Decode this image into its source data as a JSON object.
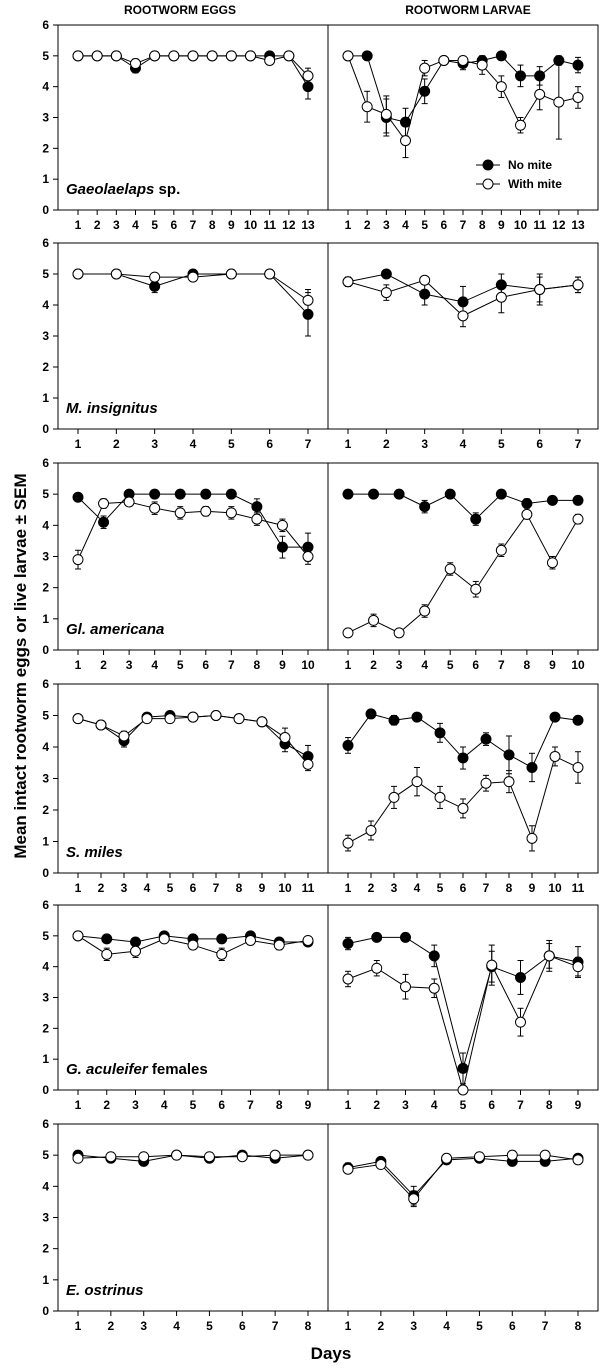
{
  "figure": {
    "col_titles": [
      "ROOTWORM EGGS",
      "ROOTWORM LARVAE"
    ],
    "ylabel": "Mean intact rootworm eggs or live larvae ± SEM",
    "xlabel": "Days",
    "legend": {
      "series1": "No mite",
      "series2": "With mite"
    },
    "colors": {
      "no_mite": "#000000",
      "with_mite": "#ffffff",
      "line": "#000000"
    }
  },
  "panels": [
    {
      "species_italic": "Gaeolaelaps",
      "species_plain": " sp.",
      "days": [
        1,
        2,
        3,
        4,
        5,
        6,
        7,
        8,
        9,
        10,
        11,
        12,
        13
      ]
    },
    {
      "species_italic": "M. insignitus",
      "species_plain": "",
      "days": [
        1,
        2,
        3,
        4,
        5,
        6,
        7
      ]
    },
    {
      "species_italic": "Gl. americana",
      "species_plain": "",
      "days": [
        1,
        2,
        3,
        4,
        5,
        6,
        7,
        8,
        9,
        10
      ]
    },
    {
      "species_italic": "S. miles",
      "species_plain": "",
      "days": [
        1,
        2,
        3,
        4,
        5,
        6,
        7,
        8,
        9,
        10,
        11
      ]
    },
    {
      "species_italic": "G. aculeifer",
      "species_plain": " females",
      "days": [
        1,
        2,
        3,
        4,
        5,
        6,
        7,
        8,
        9
      ]
    },
    {
      "species_italic": "E. ostrinus",
      "species_plain": "",
      "days": [
        1,
        2,
        3,
        4,
        5,
        6,
        7,
        8
      ]
    }
  ],
  "chart_data": [
    {
      "type": "line",
      "title": "ROOTWORM EGGS",
      "xlabel": "",
      "ylabel": "",
      "ylim": [
        0,
        6
      ],
      "x": [
        1,
        2,
        3,
        4,
        5,
        6,
        7,
        8,
        9,
        10,
        11,
        12,
        13
      ],
      "series": [
        {
          "name": "No mite",
          "values": [
            5,
            5,
            5,
            4.6,
            5,
            5,
            5,
            5,
            5,
            5,
            5,
            5,
            4.0
          ],
          "sem": [
            0,
            0,
            0,
            0.15,
            0,
            0,
            0,
            0,
            0,
            0,
            0.1,
            0,
            0.4
          ]
        },
        {
          "name": "With mite",
          "values": [
            5,
            5,
            5,
            4.75,
            5,
            5,
            5,
            5,
            5,
            5,
            4.85,
            5,
            4.35
          ],
          "sem": [
            0,
            0,
            0,
            0.15,
            0,
            0,
            0,
            0,
            0,
            0,
            0.1,
            0,
            0.25
          ]
        }
      ]
    },
    {
      "type": "line",
      "title": "ROOTWORM LARVAE",
      "xlabel": "",
      "ylabel": "",
      "ylim": [
        0,
        6
      ],
      "x": [
        1,
        2,
        3,
        4,
        5,
        6,
        7,
        8,
        9,
        10,
        11,
        12,
        13
      ],
      "series": [
        {
          "name": "No mite",
          "values": [
            5,
            5,
            3.0,
            2.85,
            3.85,
            4.85,
            4.75,
            4.85,
            5,
            4.35,
            4.35,
            4.85,
            4.7
          ],
          "sem": [
            0,
            0,
            0.6,
            0.45,
            0.4,
            0.1,
            0.2,
            0.15,
            0,
            0.35,
            0.3,
            0.15,
            0.25
          ]
        },
        {
          "name": "With mite",
          "values": [
            5,
            3.35,
            3.1,
            2.25,
            4.6,
            4.85,
            4.85,
            4.7,
            4.0,
            2.75,
            3.75,
            3.5,
            3.65
          ],
          "sem": [
            0,
            0.5,
            0.6,
            0.55,
            0.25,
            0.1,
            0.1,
            0.3,
            0.35,
            0.25,
            0.5,
            1.2,
            0.35
          ]
        }
      ]
    },
    {
      "type": "line",
      "title": "",
      "xlabel": "",
      "ylabel": "",
      "ylim": [
        0,
        6
      ],
      "x": [
        1,
        2,
        3,
        4,
        5,
        6,
        7
      ],
      "series": [
        {
          "name": "No mite",
          "values": [
            5,
            5,
            4.6,
            5,
            5,
            5,
            3.7
          ],
          "sem": [
            0,
            0,
            0.2,
            0,
            0,
            0,
            0.7
          ]
        },
        {
          "name": "With mite",
          "values": [
            5,
            5,
            4.9,
            4.9,
            5,
            5,
            4.15
          ],
          "sem": [
            0,
            0,
            0.1,
            0.1,
            0,
            0,
            0.35
          ]
        }
      ]
    },
    {
      "type": "line",
      "title": "",
      "xlabel": "",
      "ylabel": "",
      "ylim": [
        0,
        6
      ],
      "x": [
        1,
        2,
        3,
        4,
        5,
        6,
        7
      ],
      "series": [
        {
          "name": "No mite",
          "values": [
            4.75,
            5.0,
            4.35,
            4.1,
            4.65,
            4.5,
            4.65
          ],
          "sem": [
            0.15,
            0,
            0.35,
            0.5,
            0.35,
            0.5,
            0.25
          ]
        },
        {
          "name": "With mite",
          "values": [
            4.75,
            4.4,
            4.8,
            3.65,
            4.25,
            4.5,
            4.65
          ],
          "sem": [
            0.15,
            0.25,
            0.1,
            0.35,
            0.5,
            0.4,
            0.25
          ]
        }
      ]
    },
    {
      "type": "line",
      "title": "",
      "xlabel": "",
      "ylabel": "",
      "ylim": [
        0,
        6
      ],
      "x": [
        1,
        2,
        3,
        4,
        5,
        6,
        7,
        8,
        9,
        10
      ],
      "series": [
        {
          "name": "No mite",
          "values": [
            4.9,
            4.1,
            5,
            5,
            5,
            5,
            5,
            4.6,
            3.3,
            3.3
          ],
          "sem": [
            0,
            0.2,
            0,
            0,
            0,
            0,
            0,
            0.25,
            0.35,
            0.45
          ]
        },
        {
          "name": "With mite",
          "values": [
            2.9,
            4.7,
            4.75,
            4.55,
            4.4,
            4.45,
            4.4,
            4.2,
            4.0,
            3.0
          ],
          "sem": [
            0.3,
            0.15,
            0.1,
            0.2,
            0.2,
            0.15,
            0.2,
            0.2,
            0.2,
            0.25
          ]
        }
      ]
    },
    {
      "type": "line",
      "title": "",
      "xlabel": "",
      "ylabel": "",
      "ylim": [
        0,
        6
      ],
      "x": [
        1,
        2,
        3,
        4,
        5,
        6,
        7,
        8,
        9,
        10
      ],
      "series": [
        {
          "name": "No mite",
          "values": [
            5,
            5,
            5,
            4.6,
            5,
            4.2,
            5,
            4.7,
            4.8,
            4.8
          ],
          "sem": [
            0,
            0,
            0,
            0.2,
            0,
            0.2,
            0,
            0.15,
            0.1,
            0.1
          ]
        },
        {
          "name": "With mite",
          "values": [
            0.55,
            0.95,
            0.55,
            1.25,
            2.6,
            1.95,
            3.2,
            4.35,
            2.8,
            4.2
          ],
          "sem": [
            0,
            0.2,
            0,
            0.2,
            0.2,
            0.25,
            0.2,
            0,
            0.2,
            0.15
          ]
        }
      ]
    },
    {
      "type": "line",
      "title": "",
      "xlabel": "",
      "ylabel": "",
      "ylim": [
        0,
        6
      ],
      "x": [
        1,
        2,
        3,
        4,
        5,
        6,
        7,
        8,
        9,
        10,
        11
      ],
      "series": [
        {
          "name": "No mite",
          "values": [
            4.9,
            4.7,
            4.2,
            4.95,
            5,
            4.95,
            5,
            4.9,
            4.8,
            4.1,
            3.7
          ],
          "sem": [
            0,
            0.1,
            0.2,
            0.1,
            0,
            0.1,
            0,
            0,
            0.1,
            0.25,
            0.35
          ]
        },
        {
          "name": "With mite",
          "values": [
            4.9,
            4.7,
            4.35,
            4.9,
            4.9,
            4.95,
            5,
            4.9,
            4.8,
            4.3,
            3.45
          ],
          "sem": [
            0,
            0.1,
            0.15,
            0.1,
            0.1,
            0.1,
            0,
            0,
            0.1,
            0.3,
            0.2
          ]
        }
      ]
    },
    {
      "type": "line",
      "title": "",
      "xlabel": "",
      "ylabel": "",
      "ylim": [
        0,
        6
      ],
      "x": [
        1,
        2,
        3,
        4,
        5,
        6,
        7,
        8,
        9,
        10,
        11
      ],
      "series": [
        {
          "name": "No mite",
          "values": [
            4.05,
            5.05,
            4.85,
            4.95,
            4.45,
            3.65,
            4.25,
            3.75,
            3.35,
            4.95,
            4.85
          ],
          "sem": [
            0.25,
            0,
            0.15,
            0,
            0.3,
            0.35,
            0.2,
            0.6,
            0.45,
            0,
            0.1
          ]
        },
        {
          "name": "With mite",
          "values": [
            0.95,
            1.35,
            2.4,
            2.9,
            2.4,
            2.05,
            2.85,
            2.9,
            1.1,
            3.7,
            3.35
          ],
          "sem": [
            0.25,
            0.3,
            0.35,
            0.45,
            0.35,
            0.3,
            0.25,
            0.35,
            0.4,
            0.3,
            0.5
          ]
        }
      ]
    },
    {
      "type": "line",
      "title": "",
      "xlabel": "",
      "ylabel": "",
      "ylim": [
        0,
        6
      ],
      "x": [
        1,
        2,
        3,
        4,
        5,
        6,
        7,
        8,
        9
      ],
      "series": [
        {
          "name": "No mite",
          "values": [
            5,
            4.9,
            4.8,
            5,
            4.9,
            4.9,
            5,
            4.8,
            4.8
          ],
          "sem": [
            0,
            0.1,
            0.1,
            0,
            0.1,
            0.1,
            0,
            0.1,
            0.1
          ]
        },
        {
          "name": "With mite",
          "values": [
            5,
            4.4,
            4.5,
            4.9,
            4.7,
            4.4,
            4.85,
            4.7,
            4.85
          ],
          "sem": [
            0,
            0.2,
            0.2,
            0.1,
            0.1,
            0.2,
            0.1,
            0.15,
            0.1
          ]
        }
      ]
    },
    {
      "type": "line",
      "title": "",
      "xlabel": "",
      "ylabel": "",
      "ylim": [
        0,
        6
      ],
      "x": [
        1,
        2,
        3,
        4,
        5,
        6,
        7,
        8,
        9
      ],
      "series": [
        {
          "name": "No mite",
          "values": [
            4.75,
            4.95,
            4.95,
            4.35,
            0.7,
            4.0,
            3.65,
            4.35,
            4.15
          ],
          "sem": [
            0.2,
            0,
            0,
            0.35,
            0.5,
            0.5,
            0.55,
            0.4,
            0.5
          ]
        },
        {
          "name": "With mite",
          "values": [
            3.6,
            3.95,
            3.35,
            3.3,
            0,
            4.05,
            2.2,
            4.35,
            4.0
          ],
          "sem": [
            0.25,
            0.25,
            0.4,
            0.3,
            1.2,
            0.65,
            0.45,
            0.5,
            0.3
          ]
        }
      ]
    },
    {
      "type": "line",
      "title": "",
      "xlabel": "",
      "ylabel": "",
      "ylim": [
        0,
        6
      ],
      "x": [
        1,
        2,
        3,
        4,
        5,
        6,
        7,
        8
      ],
      "series": [
        {
          "name": "No mite",
          "values": [
            5,
            4.9,
            4.8,
            5,
            4.9,
            5,
            4.9,
            5
          ],
          "sem": [
            0,
            0.05,
            0.1,
            0,
            0.05,
            0.05,
            0.05,
            0
          ]
        },
        {
          "name": "With mite",
          "values": [
            4.9,
            4.95,
            4.95,
            5,
            4.95,
            4.95,
            5,
            5
          ],
          "sem": [
            0,
            0.05,
            0.05,
            0,
            0.05,
            0.05,
            0,
            0
          ]
        }
      ]
    },
    {
      "type": "line",
      "title": "",
      "xlabel": "",
      "ylabel": "",
      "ylim": [
        0,
        6
      ],
      "x": [
        1,
        2,
        3,
        4,
        5,
        6,
        7,
        8
      ],
      "series": [
        {
          "name": "No mite",
          "values": [
            4.6,
            4.8,
            3.7,
            4.85,
            4.9,
            4.8,
            4.8,
            4.9
          ],
          "sem": [
            0.15,
            0.05,
            0.3,
            0.05,
            0.05,
            0.05,
            0.05,
            0.05
          ]
        },
        {
          "name": "With mite",
          "values": [
            4.55,
            4.7,
            3.6,
            4.9,
            4.95,
            5,
            5,
            4.85
          ],
          "sem": [
            0.1,
            0.1,
            0.25,
            0.05,
            0.05,
            0,
            0,
            0.05
          ]
        }
      ]
    }
  ]
}
